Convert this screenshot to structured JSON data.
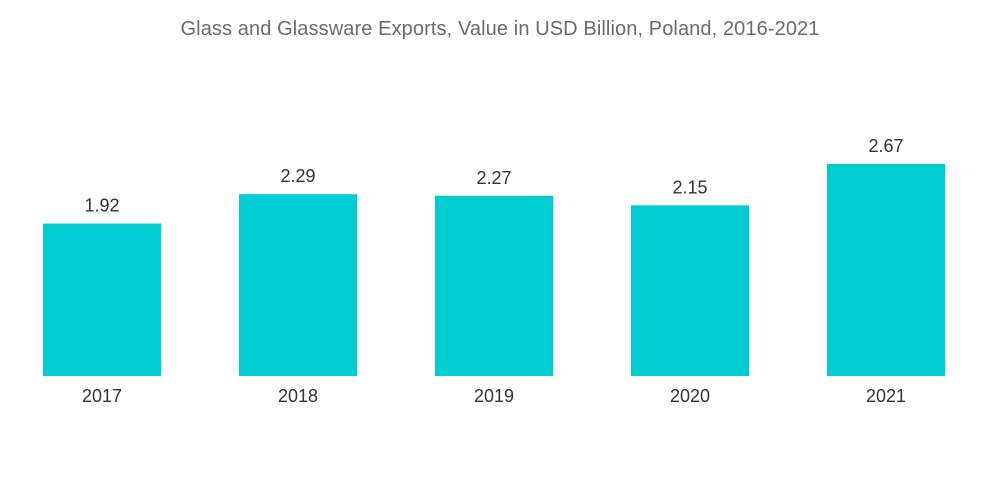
{
  "chart_data": {
    "type": "bar",
    "title": "Glass and Glassware Exports, Value in USD Billion, Poland, 2016-2021",
    "categories": [
      "2017",
      "2018",
      "2019",
      "2020",
      "2021"
    ],
    "values": [
      1.92,
      2.29,
      2.27,
      2.15,
      2.67
    ],
    "value_labels": [
      "1.92",
      "2.29",
      "2.27",
      "2.15",
      "2.67"
    ],
    "xlabel": "",
    "ylabel": "",
    "ylim": [
      0,
      2.67
    ],
    "grid": false,
    "legend": "none",
    "bar_color": "#00cdd2"
  }
}
